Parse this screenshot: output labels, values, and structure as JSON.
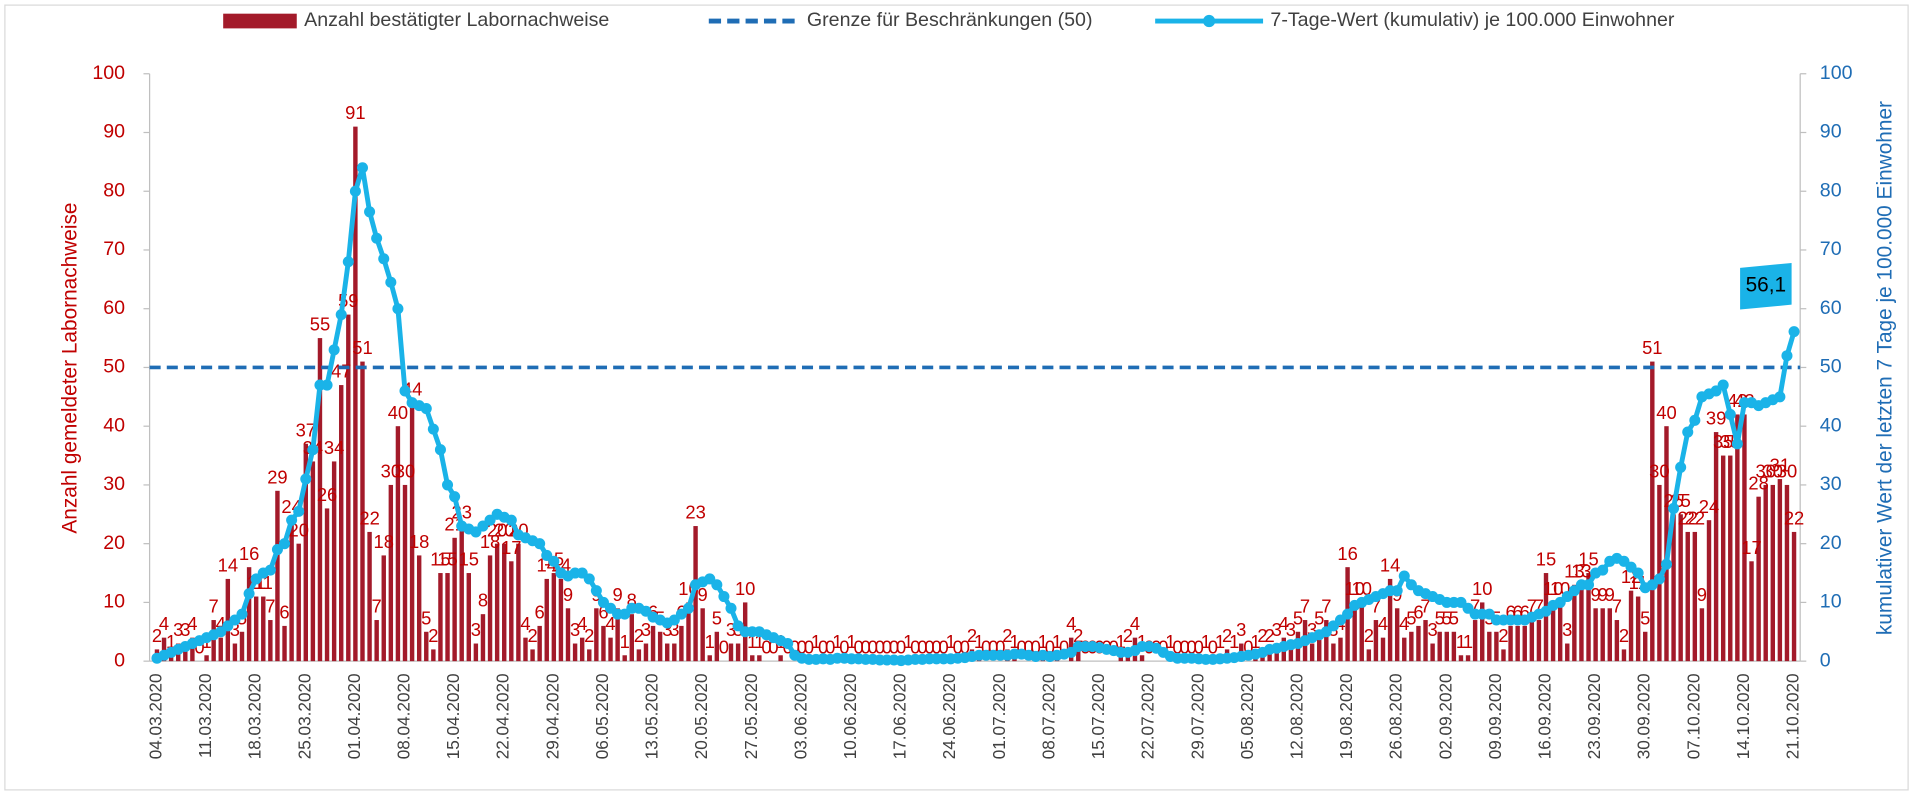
{
  "chart_data": {
    "type": "bar-line",
    "y_label": "Anzahl gemeldeter Labornachweise",
    "y2_label": "kumulativer Wert der letzten 7 Tage je 100.000 Einwohner",
    "ylim": [
      0,
      100
    ],
    "yticks": [
      0,
      10,
      20,
      30,
      40,
      50,
      60,
      70,
      80,
      90,
      100
    ],
    "y2lim": [
      0,
      100
    ],
    "y2ticks": [
      0,
      10,
      20,
      30,
      40,
      50,
      60,
      70,
      80,
      90,
      100
    ],
    "y_color": "#c00000",
    "y2_color": "#1f6db5",
    "categories": [
      "04.03.2020",
      null,
      null,
      null,
      null,
      null,
      null,
      "11.03.2020",
      null,
      null,
      null,
      null,
      null,
      null,
      "18.03.2020",
      null,
      null,
      null,
      null,
      null,
      null,
      "25.03.2020",
      null,
      null,
      null,
      null,
      null,
      null,
      "01.04.2020",
      null,
      null,
      null,
      null,
      null,
      null,
      "08.04.2020",
      null,
      null,
      null,
      null,
      null,
      null,
      "15.04.2020",
      null,
      null,
      null,
      null,
      null,
      null,
      "22.04.2020",
      null,
      null,
      null,
      null,
      null,
      null,
      "29.04.2020",
      null,
      null,
      null,
      null,
      null,
      null,
      "06.05.2020",
      null,
      null,
      null,
      null,
      null,
      null,
      "13.05.2020",
      null,
      null,
      null,
      null,
      null,
      null,
      "20.05.2020",
      null,
      null,
      null,
      null,
      null,
      null,
      "27.05.2020",
      null,
      null,
      null,
      null,
      null,
      null,
      "03.06.2020",
      null,
      null,
      null,
      null,
      null,
      null,
      "10.06.2020",
      null,
      null,
      null,
      null,
      null,
      null,
      "17.06.2020",
      null,
      null,
      null,
      null,
      null,
      null,
      "24.06.2020",
      null,
      null,
      null,
      null,
      null,
      null,
      "01.07.2020",
      null,
      null,
      null,
      null,
      null,
      null,
      "08.07.2020",
      null,
      null,
      null,
      null,
      null,
      null,
      "15.07.2020",
      null,
      null,
      null,
      null,
      null,
      null,
      "22.07.2020",
      null,
      null,
      null,
      null,
      null,
      null,
      "29.07.2020",
      null,
      null,
      null,
      null,
      null,
      null,
      "05.08.2020",
      null,
      null,
      null,
      null,
      null,
      null,
      "12.08.2020",
      null,
      null,
      null,
      null,
      null,
      null,
      "19.08.2020",
      null,
      null,
      null,
      null,
      null,
      null,
      "26.08.2020",
      null,
      null,
      null,
      null,
      null,
      null,
      "02.09.2020",
      null,
      null,
      null,
      null,
      null,
      null,
      "09.09.2020",
      null,
      null,
      null,
      null,
      null,
      null,
      "16.09.2020",
      null,
      null,
      null,
      null,
      null,
      null,
      "23.09.2020",
      null,
      null,
      null,
      null,
      null,
      null,
      "30.09.2020",
      null,
      null,
      null,
      null,
      null,
      null,
      "07.10.2020",
      null,
      null,
      null,
      null,
      null,
      null,
      "14.10.2020",
      null,
      null,
      null,
      null,
      null,
      null,
      "21.10.2020"
    ],
    "series": [
      {
        "name": "Anzahl bestätigter Labornachweise",
        "type": "bar",
        "color": "#a31a2a",
        "label_color": "#c00000",
        "values": [
          2,
          4,
          1,
          3,
          3,
          4,
          0,
          1,
          7,
          4,
          14,
          3,
          5,
          16,
          11,
          11,
          7,
          29,
          6,
          24,
          20,
          37,
          34,
          55,
          26,
          34,
          47,
          59,
          91,
          51,
          22,
          7,
          18,
          30,
          40,
          30,
          44,
          18,
          5,
          2,
          15,
          15,
          21,
          23,
          15,
          3,
          8,
          18,
          20,
          20,
          17,
          20,
          4,
          2,
          6,
          14,
          15,
          14,
          9,
          3,
          4,
          2,
          9,
          6,
          4,
          9,
          1,
          8,
          2,
          3,
          6,
          5,
          3,
          3,
          6,
          10,
          23,
          9,
          1,
          5,
          0,
          3,
          3,
          10,
          1,
          1,
          0,
          0,
          1,
          0,
          0,
          0,
          0,
          1,
          0,
          0,
          1,
          0,
          1,
          0,
          0,
          0,
          0,
          0,
          0,
          0,
          1,
          0,
          0,
          0,
          0,
          0,
          1,
          0,
          0,
          2,
          1,
          0,
          0,
          0,
          2,
          1,
          0,
          0,
          0,
          1,
          0,
          1,
          0,
          4,
          2,
          0,
          0,
          0,
          0,
          0,
          1,
          2,
          4,
          1,
          0,
          0,
          0,
          1,
          0,
          0,
          0,
          0,
          1,
          0,
          1,
          2,
          1,
          3,
          0,
          1,
          2,
          2,
          3,
          4,
          3,
          5,
          7,
          3,
          5,
          7,
          3,
          4,
          16,
          10,
          10,
          2,
          7,
          4,
          14,
          9,
          4,
          5,
          6,
          7,
          3,
          5,
          5,
          5,
          1,
          1,
          7,
          10,
          5,
          5,
          2,
          6,
          6,
          6,
          7,
          7,
          15,
          10,
          10,
          3,
          13,
          13,
          15,
          9,
          9,
          9,
          7,
          2,
          12,
          11,
          5,
          51,
          30,
          40,
          25,
          25,
          22,
          22,
          9,
          24,
          39,
          35,
          35,
          42,
          42,
          17,
          28,
          30,
          30,
          31,
          30,
          22
        ]
      },
      {
        "name": "Grenze für Beschränkungen (50)",
        "type": "threshold",
        "color": "#1f6db5",
        "axis": "y2",
        "value": 50
      },
      {
        "name": "7-Tage-Wert (kumulativ) je 100.000 Einwohner",
        "type": "line",
        "color": "#1ab3e8",
        "axis": "y2",
        "values": [
          0.5,
          1,
          1.5,
          2,
          2.5,
          3,
          3.5,
          4,
          4.5,
          5,
          6,
          7,
          8,
          11.5,
          14,
          15,
          15.5,
          19,
          20,
          24,
          25.5,
          31,
          36,
          47,
          47,
          53,
          59,
          68,
          80,
          84,
          76.5,
          72,
          68.5,
          64.5,
          60,
          46,
          44,
          43.5,
          43,
          39.5,
          36,
          30,
          28,
          23,
          22.5,
          22,
          23,
          24,
          25,
          24.5,
          24,
          21.5,
          21,
          20.5,
          20,
          18,
          17,
          15,
          14.5,
          15,
          15,
          14,
          12,
          10,
          9,
          8,
          8,
          9,
          9,
          8.5,
          7.5,
          7,
          6.5,
          7,
          8,
          9,
          13,
          13.5,
          14,
          13,
          11,
          9,
          6,
          5,
          5,
          5,
          4.5,
          4,
          3.5,
          3,
          1,
          0.5,
          0.3,
          0.3,
          0.4,
          0.3,
          0.5,
          0.5,
          0.4,
          0.4,
          0.3,
          0.3,
          0.2,
          0.2,
          0.2,
          0.1,
          0.2,
          0.3,
          0.3,
          0.4,
          0.4,
          0.4,
          0.4,
          0.5,
          0.6,
          0.8,
          1,
          1,
          1,
          1,
          1,
          1.2,
          1.2,
          1,
          0.8,
          1,
          0.8,
          1,
          1.2,
          1.5,
          2.5,
          2.5,
          2.5,
          2.3,
          2,
          1.8,
          1.5,
          1.5,
          1.8,
          2.5,
          2.5,
          2.2,
          1.5,
          0.8,
          0.5,
          0.5,
          0.5,
          0.4,
          0.3,
          0.3,
          0.4,
          0.5,
          0.6,
          0.8,
          1,
          1.2,
          1.5,
          2,
          2.2,
          2.5,
          2.8,
          3,
          3.5,
          4,
          4.5,
          5,
          6,
          7,
          8,
          9.5,
          10,
          10.5,
          11,
          11.5,
          12,
          12,
          14.5,
          13,
          12,
          11.5,
          11,
          10.5,
          10,
          10,
          10,
          9,
          8,
          8,
          8,
          7,
          7,
          7,
          7,
          7,
          7.5,
          8,
          8.5,
          9.5,
          10,
          11,
          12,
          13,
          13,
          15,
          15.5,
          17,
          17.5,
          17,
          16,
          15,
          12.5,
          13,
          14,
          16.5,
          26,
          33,
          39,
          41,
          45,
          45.5,
          46,
          47,
          42,
          37,
          44,
          44,
          43.5,
          44,
          44.5,
          45,
          52,
          56.1
        ]
      }
    ],
    "annotation": {
      "text": "56,1",
      "x": "21.10.2020"
    }
  }
}
